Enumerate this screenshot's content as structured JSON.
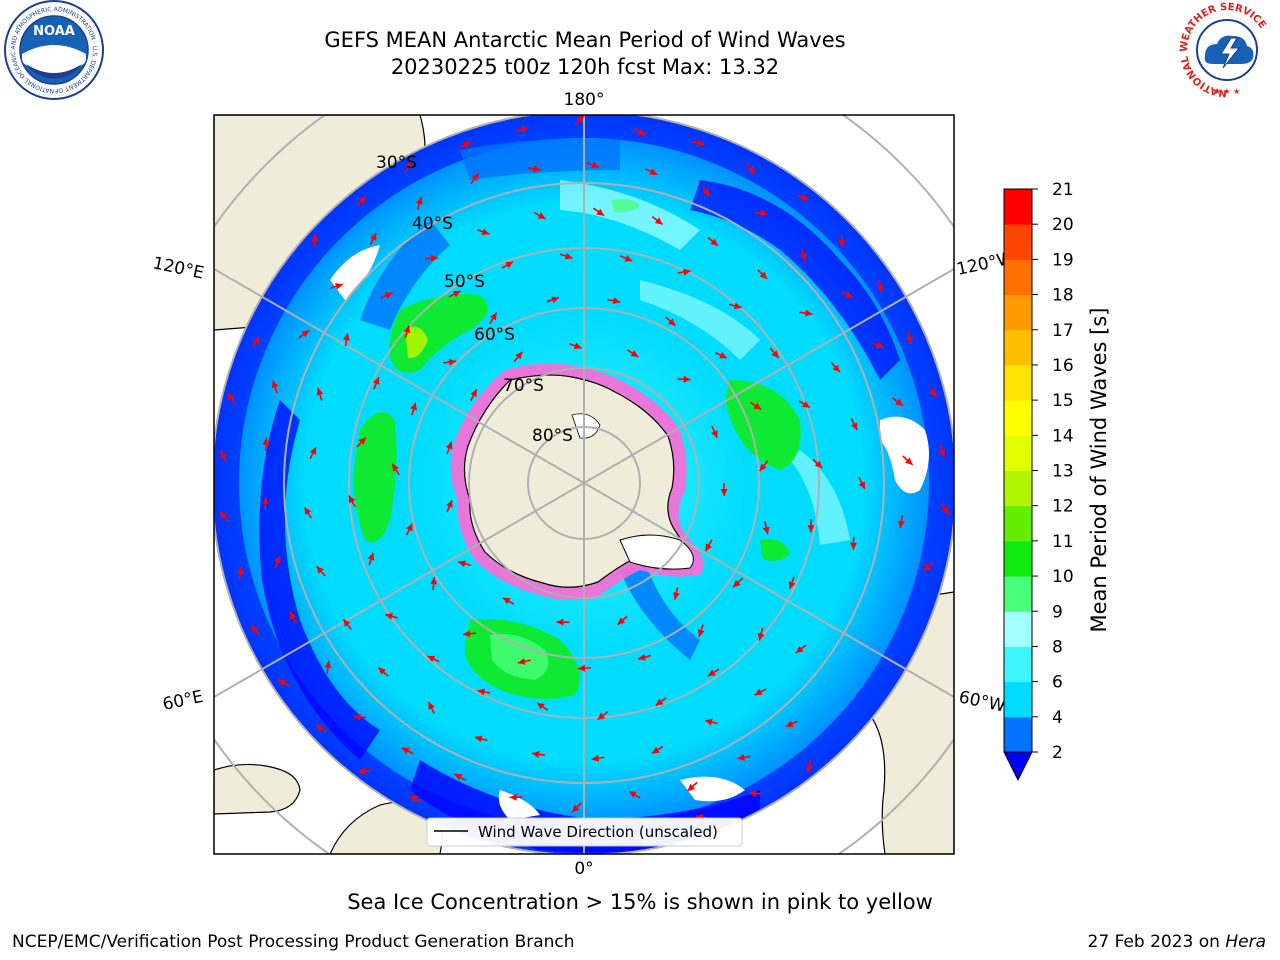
{
  "title": {
    "line1": "GEFS MEAN Antarctic Mean Period of Wind Waves",
    "line2": "20230225 t00z 120h fcst   Max: 13.32"
  },
  "map": {
    "lon_labels": {
      "top": "180°",
      "bottom": "0°",
      "upper_left": "120°E",
      "upper_right": "120°W",
      "lower_left": "60°E",
      "lower_right": "60°W"
    },
    "lat_labels": [
      "30°S",
      "40°S",
      "50°S",
      "60°S",
      "70°S",
      "80°S"
    ],
    "legend_label": "Wind Wave Direction (unscaled)",
    "arrow_color": "#ff0000"
  },
  "colorbar": {
    "label": "Mean Period of Wind Waves [s]",
    "ticks": [
      "2",
      "4",
      "6",
      "8",
      "9",
      "10",
      "11",
      "12",
      "13",
      "14",
      "15",
      "16",
      "17",
      "18",
      "19",
      "20",
      "21"
    ],
    "colors": [
      "#0073ff",
      "#00dcff",
      "#3ff5ff",
      "#a3ffff",
      "#4aff7a",
      "#11ec10",
      "#63ee00",
      "#b1f500",
      "#e1ff00",
      "#ffff00",
      "#ffe400",
      "#ffbf00",
      "#ff9b00",
      "#ff7000",
      "#ff4500",
      "#ff0000"
    ],
    "under_color": "#0000ff"
  },
  "subtitle": "Sea Ice Concentration > 15% is shown in pink to yellow",
  "footer": {
    "left": "NCEP/EMC/Verification Post Processing Product Generation Branch",
    "date": "27 Feb 2023 on ",
    "machine": "Hera"
  },
  "logos": {
    "noaa_text": "NOAA",
    "noaa_ring": "NATIONAL OCEANIC AND ATMOSPHERIC ADMINISTRATION · U.S. DEPARTMENT OF COMMERCE",
    "nws_ring": "NATIONAL WEATHER SERVICE"
  }
}
